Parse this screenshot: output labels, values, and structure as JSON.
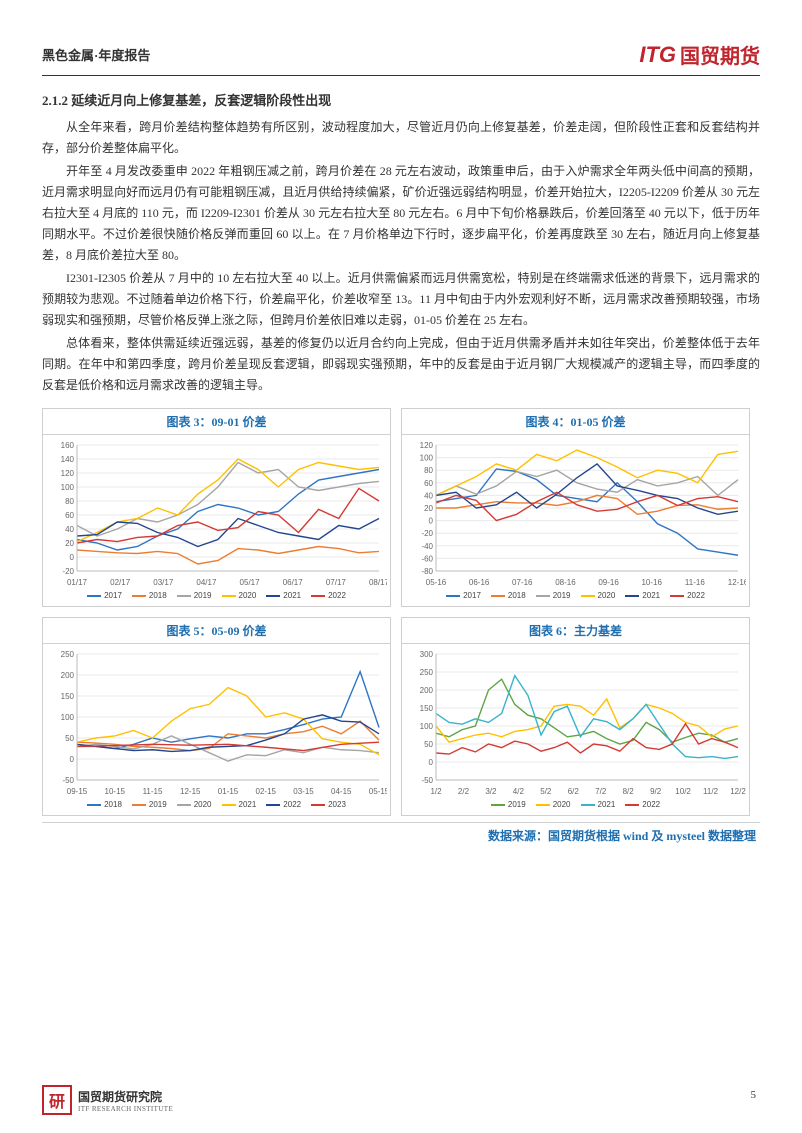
{
  "header": {
    "category": "黑色金属·年度报告",
    "logo_itg": "ITG",
    "logo_cn": "国贸期货"
  },
  "section": {
    "title": "2.1.2 延续近月向上修复基差，反套逻辑阶段性出现",
    "paragraphs": [
      "从全年来看，跨月价差结构整体趋势有所区别，波动程度加大，尽管近月仍向上修复基差，价差走阔，但阶段性正套和反套结构并存，部分价差整体扁平化。",
      "开年至 4 月发改委重申 2022 年粗钢压减之前，跨月价差在 28 元左右波动，政策重申后，由于入炉需求全年两头低中间高的预期，近月需求明显向好而远月仍有可能粗钢压减，且近月供给持续偏紧，矿价近强远弱结构明显，价差开始拉大，I2205-I2209 价差从 30 元左右拉大至 4 月底的 110 元，而 I2209-I2301 价差从 30 元左右拉大至 80 元左右。6 月中下旬价格暴跌后，价差回落至 40 元以下，低于历年同期水平。不过价差很快随价格反弹而重回 60 以上。在 7 月价格单边下行时，逐步扁平化，价差再度跌至 30 左右，随近月向上修复基差，8 月底价差拉大至 80。",
      "I2301-I2305 价差从 7 月中的 10 左右拉大至 40 以上。近月供需偏紧而远月供需宽松，特别是在终端需求低迷的背景下，远月需求的预期较为悲观。不过随着单边价格下行，价差扁平化，价差收窄至 13。11 月中旬由于内外宏观利好不断，远月需求改善预期较强，市场弱现实和强预期，尽管价格反弹上涨之际，但跨月价差依旧难以走弱，01-05 价差在 25 左右。",
      "总体看来，整体供需延续近强远弱，基差的修复仍以近月合约向上完成，但由于近月供需矛盾并未如往年突出，价差整体低于去年同期。在年中和第四季度，跨月价差呈现反套逻辑，即弱现实强预期，年中的反套是由于近月钢厂大规模减产的逻辑主导，而四季度的反套是低价格和远月需求改善的逻辑主导。"
    ]
  },
  "colors": {
    "blue": "#2e75c6",
    "orange": "#ed7d31",
    "gray": "#a5a5a5",
    "yellow": "#ffc000",
    "darkblue": "#24458f",
    "red": "#d43a35",
    "green": "#5fa544",
    "cyan": "#37b4c9"
  },
  "chart3": {
    "title": "图表 3：09-01 价差",
    "type": "line",
    "xticks": [
      "01/17",
      "02/17",
      "03/17",
      "04/17",
      "05/17",
      "06/17",
      "07/17",
      "08/17"
    ],
    "ylim": [
      -20,
      160
    ],
    "ytick_step": 20,
    "series": [
      {
        "name": "2017",
        "color": "#2e75c6",
        "data": [
          25,
          20,
          10,
          15,
          30,
          40,
          65,
          75,
          70,
          60,
          65,
          90,
          110,
          115,
          120,
          125
        ]
      },
      {
        "name": "2018",
        "color": "#ed7d31",
        "data": [
          10,
          8,
          6,
          5,
          8,
          5,
          -10,
          -5,
          12,
          10,
          5,
          10,
          15,
          12,
          6,
          8
        ]
      },
      {
        "name": "2019",
        "color": "#a5a5a5",
        "data": [
          45,
          30,
          40,
          55,
          50,
          60,
          75,
          100,
          135,
          120,
          125,
          100,
          95,
          100,
          105,
          108
        ]
      },
      {
        "name": "2020",
        "color": "#ffc000",
        "data": [
          22,
          35,
          50,
          55,
          70,
          60,
          90,
          110,
          140,
          125,
          100,
          125,
          135,
          130,
          125,
          128
        ]
      },
      {
        "name": "2021",
        "color": "#24458f",
        "data": [
          30,
          32,
          50,
          48,
          35,
          28,
          15,
          25,
          55,
          45,
          35,
          30,
          25,
          45,
          40,
          55
        ]
      },
      {
        "name": "2022",
        "color": "#d43a35",
        "data": [
          20,
          25,
          22,
          28,
          30,
          45,
          50,
          38,
          42,
          65,
          60,
          35,
          68,
          55,
          98,
          80
        ]
      }
    ],
    "legend": [
      "2017",
      "2018",
      "2019",
      "2020",
      "2021",
      "2022"
    ]
  },
  "chart4": {
    "title": "图表 4：01-05 价差",
    "type": "line",
    "xticks": [
      "05-16",
      "06-16",
      "07-16",
      "08-16",
      "09-16",
      "10-16",
      "11-16",
      "12-16"
    ],
    "ylim": [
      -80,
      120
    ],
    "ytick_step": 20,
    "series": [
      {
        "name": "2017",
        "color": "#2e75c6",
        "data": [
          30,
          35,
          40,
          82,
          78,
          65,
          40,
          35,
          30,
          60,
          30,
          -5,
          -20,
          -45,
          -50,
          -55
        ]
      },
      {
        "name": "2018",
        "color": "#ed7d31",
        "data": [
          20,
          20,
          25,
          30,
          28,
          28,
          24,
          30,
          40,
          35,
          10,
          15,
          24,
          25,
          18,
          20
        ]
      },
      {
        "name": "2019",
        "color": "#a5a5a5",
        "data": [
          40,
          55,
          42,
          55,
          78,
          70,
          80,
          60,
          50,
          45,
          65,
          55,
          60,
          70,
          40,
          65
        ]
      },
      {
        "name": "2020",
        "color": "#ffc000",
        "data": [
          40,
          55,
          70,
          90,
          80,
          105,
          95,
          112,
          100,
          85,
          68,
          80,
          75,
          60,
          105,
          110
        ]
      },
      {
        "name": "2021",
        "color": "#24458f",
        "data": [
          40,
          45,
          20,
          25,
          45,
          20,
          42,
          68,
          90,
          55,
          48,
          40,
          35,
          20,
          10,
          15
        ]
      },
      {
        "name": "2022",
        "color": "#d43a35",
        "data": [
          28,
          40,
          32,
          0,
          10,
          30,
          45,
          25,
          15,
          18,
          30,
          40,
          24,
          35,
          38,
          30
        ]
      }
    ],
    "legend": [
      "2017",
      "2018",
      "2019",
      "2020",
      "2021",
      "2022"
    ]
  },
  "chart5": {
    "title": "图表 5：05-09 价差",
    "type": "line",
    "xticks": [
      "09-15",
      "10-15",
      "11-15",
      "12-15",
      "01-15",
      "02-15",
      "03-15",
      "04-15",
      "05-15"
    ],
    "ylim": [
      -50,
      250
    ],
    "ytick_step": 50,
    "series": [
      {
        "name": "2018",
        "color": "#2e75c6",
        "data": [
          30,
          30,
          25,
          35,
          50,
          40,
          48,
          55,
          50,
          60,
          60,
          70,
          82,
          95,
          100,
          208,
          75
        ]
      },
      {
        "name": "2019",
        "color": "#ed7d31",
        "data": [
          40,
          38,
          35,
          30,
          28,
          25,
          20,
          25,
          60,
          55,
          50,
          60,
          65,
          78,
          60,
          90,
          45
        ]
      },
      {
        "name": "2020",
        "color": "#a5a5a5",
        "data": [
          30,
          35,
          30,
          24,
          35,
          55,
          35,
          15,
          -5,
          10,
          8,
          22,
          15,
          28,
          22,
          20,
          15
        ]
      },
      {
        "name": "2021",
        "color": "#ffc000",
        "data": [
          40,
          50,
          55,
          68,
          50,
          90,
          120,
          130,
          170,
          150,
          100,
          110,
          95,
          48,
          40,
          35,
          10
        ]
      },
      {
        "name": "2022",
        "color": "#24458f",
        "data": [
          35,
          30,
          25,
          20,
          22,
          18,
          20,
          28,
          30,
          32,
          45,
          60,
          95,
          105,
          90,
          88,
          60
        ]
      },
      {
        "name": "2023",
        "color": "#d43a35",
        "data": [
          30,
          32,
          35,
          33,
          35,
          28,
          20,
          35,
          40
        ]
      }
    ],
    "legend": [
      "2018",
      "2019",
      "2020",
      "2021",
      "2022",
      "2023"
    ]
  },
  "chart6": {
    "title": "图表 6：主力基差",
    "type": "line",
    "xticks": [
      "1/2",
      "2/2",
      "3/2",
      "4/2",
      "5/2",
      "6/2",
      "7/2",
      "8/2",
      "9/2",
      "10/2",
      "11/2",
      "12/2"
    ],
    "ylim": [
      -50,
      300
    ],
    "ytick_step": 50,
    "series": [
      {
        "name": "2019",
        "color": "#5fa544",
        "data": [
          80,
          70,
          90,
          100,
          200,
          230,
          160,
          130,
          120,
          95,
          70,
          75,
          85,
          65,
          50,
          60,
          110,
          90,
          55,
          68,
          80,
          75,
          55,
          65
        ]
      },
      {
        "name": "2020",
        "color": "#ffc000",
        "data": [
          100,
          55,
          65,
          75,
          80,
          70,
          85,
          90,
          100,
          155,
          160,
          155,
          130,
          175,
          95,
          120,
          160,
          150,
          135,
          110,
          100,
          70,
          92,
          100
        ]
      },
      {
        "name": "2021",
        "color": "#37b4c9",
        "data": [
          135,
          110,
          105,
          120,
          110,
          135,
          240,
          185,
          75,
          140,
          155,
          70,
          120,
          112,
          90,
          120,
          160,
          105,
          50,
          15,
          12,
          15,
          10,
          15
        ]
      },
      {
        "name": "2022",
        "color": "#d43a35",
        "data": [
          25,
          22,
          40,
          28,
          50,
          40,
          58,
          50,
          30,
          40,
          55,
          25,
          50,
          45,
          30,
          65,
          40,
          35,
          50,
          106,
          50,
          65,
          55,
          40
        ]
      }
    ],
    "legend": [
      "2019",
      "2020",
      "2021",
      "2022"
    ]
  },
  "source": "数据来源：国贸期货根据 wind 及 mysteel 数据整理",
  "footer": {
    "stamp": "研",
    "institute_cn": "国贸期货研究院",
    "institute_en": "ITF RESEARCH INSTITUTE"
  },
  "page_number": "5"
}
